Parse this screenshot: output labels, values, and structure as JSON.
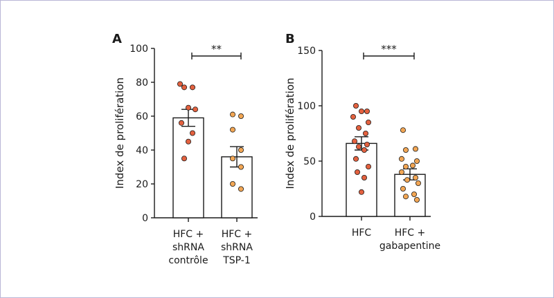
{
  "chart_data": [
    {
      "type": "bar",
      "panel": "A",
      "ylabel": "Index de prolifération",
      "ylim": [
        0,
        100
      ],
      "yticks": [
        0,
        20,
        40,
        60,
        80,
        100
      ],
      "categories": [
        [
          "HFC +",
          "shRNA",
          "contrôle"
        ],
        [
          "HFC +",
          "shRNA",
          "TSP-1"
        ]
      ],
      "values": [
        59,
        36
      ],
      "sem": [
        5,
        6
      ],
      "points": [
        [
          79,
          77,
          77,
          65,
          64,
          56,
          50,
          45,
          35
        ],
        [
          61,
          60,
          52,
          40,
          35,
          30,
          20,
          17
        ]
      ],
      "point_colors": [
        "#e3613f",
        "#f2a654"
      ],
      "significance": "**"
    },
    {
      "type": "bar",
      "panel": "B",
      "ylabel": "Index de prolifération",
      "ylim": [
        0,
        150
      ],
      "yticks": [
        0,
        50,
        100,
        150
      ],
      "categories": [
        [
          "HFC"
        ],
        [
          "HFC +",
          "gabapentine"
        ]
      ],
      "values": [
        66,
        38
      ],
      "sem": [
        6,
        5
      ],
      "points": [
        [
          100,
          95,
          95,
          90,
          85,
          80,
          75,
          68,
          65,
          63,
          60,
          52,
          45,
          40,
          35,
          22
        ],
        [
          78,
          61,
          60,
          52,
          50,
          46,
          45,
          40,
          35,
          33,
          30,
          25,
          20,
          18,
          15
        ]
      ],
      "point_colors": [
        "#e3613f",
        "#f2a654"
      ],
      "significance": "***"
    }
  ]
}
